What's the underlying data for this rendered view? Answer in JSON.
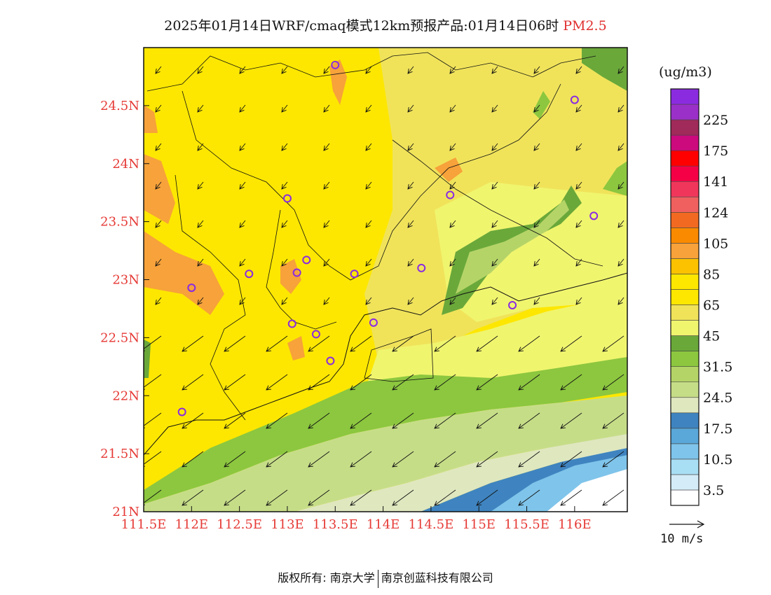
{
  "title": {
    "text": "2025年01月14日WRF/cmaq模式12km预报产品:01月14日06时",
    "pollutant": "PM2.5",
    "pollutant_color": "#e0302f"
  },
  "map": {
    "lon_labels": [
      "111.5E",
      "112E",
      "112.5E",
      "113E",
      "113.5E",
      "114E",
      "114.5E",
      "115E",
      "115.5E",
      "116E"
    ],
    "lon_values": [
      111.5,
      112,
      112.5,
      113,
      113.5,
      114,
      114.5,
      115,
      115.5,
      116
    ],
    "lat_labels": [
      "21N",
      "21.5N",
      "22N",
      "22.5N",
      "23N",
      "23.5N",
      "24N",
      "24.5N"
    ],
    "lat_values": [
      21,
      21.5,
      22,
      22.5,
      23,
      23.5,
      24,
      24.5
    ],
    "lon_range": [
      111.5,
      116.55
    ],
    "lat_range": [
      21,
      25
    ],
    "tick_color": "#e53935",
    "station_marker_color": "#8a2be2",
    "stations": [
      {
        "lon": 113.5,
        "lat": 24.85
      },
      {
        "lon": 116.0,
        "lat": 24.55
      },
      {
        "lon": 113.0,
        "lat": 23.7
      },
      {
        "lon": 114.7,
        "lat": 23.73
      },
      {
        "lon": 116.2,
        "lat": 23.55
      },
      {
        "lon": 112.6,
        "lat": 23.05
      },
      {
        "lon": 113.2,
        "lat": 23.17
      },
      {
        "lon": 113.1,
        "lat": 23.06
      },
      {
        "lon": 113.7,
        "lat": 23.05
      },
      {
        "lon": 114.4,
        "lat": 23.1
      },
      {
        "lon": 112.0,
        "lat": 22.93
      },
      {
        "lon": 113.05,
        "lat": 22.62
      },
      {
        "lon": 113.3,
        "lat": 22.53
      },
      {
        "lon": 113.9,
        "lat": 22.63
      },
      {
        "lon": 115.35,
        "lat": 22.78
      },
      {
        "lon": 113.45,
        "lat": 22.3
      },
      {
        "lon": 111.9,
        "lat": 21.86
      }
    ]
  },
  "colorbar": {
    "unit": "(ug/m3)",
    "colors": [
      "#ffffff",
      "#d4ecf7",
      "#a9dff5",
      "#7fc4ea",
      "#5aa7d9",
      "#3f84c0",
      "#dfe7bf",
      "#c6dd88",
      "#b5d468",
      "#8cc73f",
      "#6aa83a",
      "#f0f56e",
      "#f0e35a",
      "#fde700",
      "#fde700",
      "#fcc200",
      "#f7a23a",
      "#fa8a00",
      "#f26a21",
      "#f0605f",
      "#f1365b",
      "#f50046",
      "#ff0000",
      "#cc0a7e",
      "#a02a5a",
      "#9b30c8",
      "#8b2be0"
    ],
    "labels": [
      "3.5",
      "10.5",
      "17.5",
      "24.5",
      "31.5",
      "45",
      "65",
      "85",
      "105",
      "124",
      "141",
      "175",
      "225"
    ]
  },
  "wind_reference": {
    "label": "10 m/s"
  },
  "footer": {
    "left": "版权所有: 南京大学",
    "right": "南京创蓝科技有限公司"
  }
}
